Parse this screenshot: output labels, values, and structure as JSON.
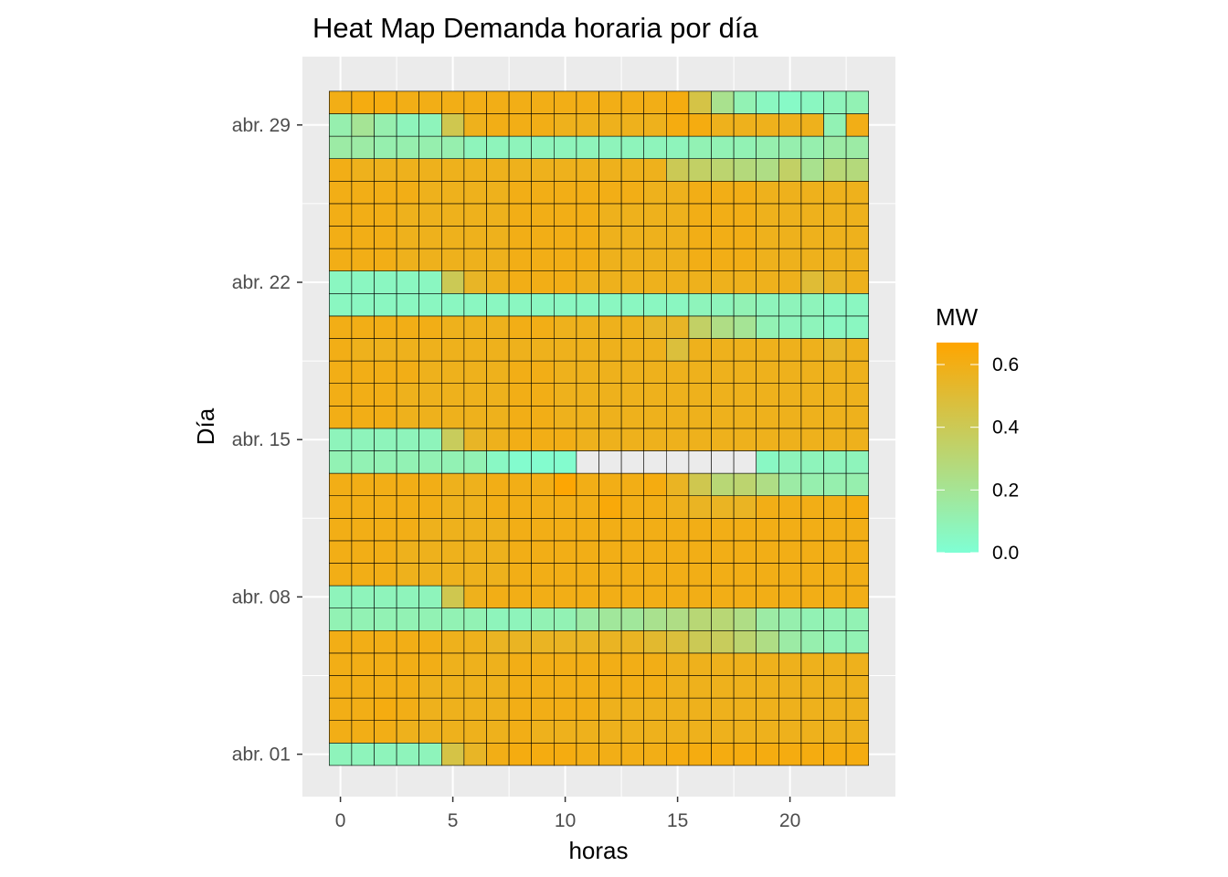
{
  "chart_data": {
    "type": "heatmap",
    "title": "Heat Map Demanda horaria por día",
    "xlabel": "horas",
    "ylabel": "Día",
    "x": [
      0,
      1,
      2,
      3,
      4,
      5,
      6,
      7,
      8,
      9,
      10,
      11,
      12,
      13,
      14,
      15,
      16,
      17,
      18,
      19,
      20,
      21,
      22,
      23
    ],
    "x_ticks": [
      0,
      5,
      10,
      15,
      20
    ],
    "x_tick_labels": [
      "0",
      "5",
      "10",
      "15",
      "20"
    ],
    "y_ticks": [
      {
        "day": 1,
        "label": "abr. 01"
      },
      {
        "day": 8,
        "label": "abr. 08"
      },
      {
        "day": 15,
        "label": "abr. 15"
      },
      {
        "day": 22,
        "label": "abr. 22"
      },
      {
        "day": 29,
        "label": "abr. 29"
      }
    ],
    "days": [
      {
        "day": 1,
        "values": [
          0.08,
          0.08,
          0.08,
          0.08,
          0.08,
          0.45,
          0.55,
          0.6,
          0.62,
          0.62,
          0.62,
          0.6,
          0.6,
          0.6,
          0.6,
          0.62,
          0.62,
          0.62,
          0.62,
          0.62,
          0.62,
          0.62,
          0.62,
          0.62
        ]
      },
      {
        "day": 2,
        "values": [
          0.6,
          0.6,
          0.6,
          0.58,
          0.58,
          0.58,
          0.58,
          0.58,
          0.6,
          0.58,
          0.58,
          0.58,
          0.58,
          0.58,
          0.58,
          0.58,
          0.58,
          0.58,
          0.58,
          0.58,
          0.58,
          0.58,
          0.58,
          0.58
        ]
      },
      {
        "day": 3,
        "values": [
          0.6,
          0.6,
          0.62,
          0.6,
          0.58,
          0.58,
          0.58,
          0.58,
          0.6,
          0.6,
          0.6,
          0.6,
          0.58,
          0.58,
          0.58,
          0.58,
          0.58,
          0.58,
          0.58,
          0.58,
          0.58,
          0.58,
          0.58,
          0.58
        ]
      },
      {
        "day": 4,
        "values": [
          0.6,
          0.6,
          0.6,
          0.6,
          0.58,
          0.58,
          0.58,
          0.58,
          0.6,
          0.6,
          0.6,
          0.6,
          0.6,
          0.6,
          0.6,
          0.58,
          0.58,
          0.58,
          0.58,
          0.58,
          0.58,
          0.58,
          0.58,
          0.58
        ]
      },
      {
        "day": 5,
        "values": [
          0.6,
          0.6,
          0.6,
          0.6,
          0.6,
          0.58,
          0.58,
          0.58,
          0.6,
          0.6,
          0.6,
          0.6,
          0.6,
          0.6,
          0.6,
          0.58,
          0.58,
          0.58,
          0.58,
          0.58,
          0.58,
          0.58,
          0.58,
          0.58
        ]
      },
      {
        "day": 6,
        "values": [
          0.6,
          0.6,
          0.6,
          0.6,
          0.6,
          0.58,
          0.58,
          0.56,
          0.56,
          0.56,
          0.56,
          0.56,
          0.56,
          0.56,
          0.52,
          0.48,
          0.4,
          0.38,
          0.32,
          0.25,
          0.15,
          0.12,
          0.1,
          0.1
        ]
      },
      {
        "day": 7,
        "values": [
          0.1,
          0.1,
          0.1,
          0.1,
          0.1,
          0.1,
          0.1,
          0.08,
          0.08,
          0.1,
          0.1,
          0.15,
          0.18,
          0.18,
          0.22,
          0.25,
          0.3,
          0.3,
          0.25,
          0.15,
          0.12,
          0.1,
          0.1,
          0.1
        ]
      },
      {
        "day": 8,
        "values": [
          0.08,
          0.08,
          0.08,
          0.08,
          0.08,
          0.42,
          0.58,
          0.6,
          0.6,
          0.6,
          0.6,
          0.6,
          0.6,
          0.6,
          0.6,
          0.6,
          0.6,
          0.6,
          0.6,
          0.6,
          0.6,
          0.6,
          0.6,
          0.6
        ]
      },
      {
        "day": 9,
        "values": [
          0.6,
          0.6,
          0.6,
          0.58,
          0.58,
          0.58,
          0.58,
          0.58,
          0.6,
          0.6,
          0.6,
          0.6,
          0.6,
          0.6,
          0.6,
          0.6,
          0.6,
          0.6,
          0.6,
          0.6,
          0.6,
          0.6,
          0.6,
          0.6
        ]
      },
      {
        "day": 10,
        "values": [
          0.6,
          0.6,
          0.6,
          0.58,
          0.58,
          0.58,
          0.58,
          0.58,
          0.6,
          0.6,
          0.6,
          0.6,
          0.6,
          0.6,
          0.6,
          0.6,
          0.6,
          0.6,
          0.6,
          0.6,
          0.6,
          0.6,
          0.6,
          0.6
        ]
      },
      {
        "day": 11,
        "values": [
          0.6,
          0.6,
          0.6,
          0.6,
          0.58,
          0.58,
          0.58,
          0.58,
          0.6,
          0.6,
          0.6,
          0.6,
          0.6,
          0.6,
          0.6,
          0.6,
          0.6,
          0.6,
          0.6,
          0.6,
          0.6,
          0.6,
          0.6,
          0.6
        ]
      },
      {
        "day": 12,
        "values": [
          0.6,
          0.6,
          0.6,
          0.6,
          0.6,
          0.58,
          0.58,
          0.6,
          0.6,
          0.6,
          0.6,
          0.6,
          0.64,
          0.6,
          0.6,
          0.58,
          0.56,
          0.56,
          0.56,
          0.6,
          0.6,
          0.6,
          0.6,
          0.62
        ]
      },
      {
        "day": 13,
        "values": [
          0.6,
          0.6,
          0.6,
          0.6,
          0.6,
          0.58,
          0.58,
          0.6,
          0.6,
          0.6,
          0.66,
          0.6,
          0.6,
          0.6,
          0.62,
          0.56,
          0.42,
          0.3,
          0.32,
          0.25,
          0.15,
          0.12,
          0.12,
          0.12
        ]
      },
      {
        "day": 14,
        "values": [
          0.1,
          0.1,
          0.1,
          0.1,
          0.1,
          0.1,
          0.1,
          0.05,
          0.02,
          0.02,
          0.02,
          null,
          null,
          null,
          null,
          null,
          null,
          null,
          null,
          0.05,
          0.08,
          0.08,
          0.08,
          0.08
        ]
      },
      {
        "day": 15,
        "values": [
          0.08,
          0.08,
          0.08,
          0.08,
          0.08,
          0.38,
          0.55,
          0.58,
          0.6,
          0.6,
          0.6,
          0.58,
          0.58,
          0.58,
          0.58,
          0.58,
          0.58,
          0.58,
          0.58,
          0.58,
          0.58,
          0.58,
          0.58,
          0.58
        ]
      },
      {
        "day": 16,
        "values": [
          0.6,
          0.6,
          0.6,
          0.58,
          0.58,
          0.58,
          0.58,
          0.58,
          0.6,
          0.6,
          0.58,
          0.58,
          0.58,
          0.58,
          0.58,
          0.58,
          0.58,
          0.58,
          0.58,
          0.58,
          0.58,
          0.58,
          0.58,
          0.58
        ]
      },
      {
        "day": 17,
        "values": [
          0.6,
          0.6,
          0.6,
          0.58,
          0.58,
          0.58,
          0.58,
          0.58,
          0.6,
          0.6,
          0.58,
          0.58,
          0.58,
          0.58,
          0.58,
          0.58,
          0.58,
          0.58,
          0.58,
          0.58,
          0.58,
          0.58,
          0.58,
          0.58
        ]
      },
      {
        "day": 18,
        "values": [
          0.6,
          0.6,
          0.6,
          0.6,
          0.58,
          0.58,
          0.58,
          0.58,
          0.6,
          0.6,
          0.58,
          0.58,
          0.58,
          0.58,
          0.58,
          0.58,
          0.58,
          0.58,
          0.58,
          0.58,
          0.58,
          0.58,
          0.58,
          0.58
        ]
      },
      {
        "day": 19,
        "values": [
          0.6,
          0.58,
          0.58,
          0.58,
          0.58,
          0.58,
          0.58,
          0.58,
          0.58,
          0.58,
          0.58,
          0.58,
          0.58,
          0.58,
          0.58,
          0.48,
          0.58,
          0.58,
          0.58,
          0.58,
          0.58,
          0.58,
          0.55,
          0.58
        ]
      },
      {
        "day": 20,
        "values": [
          0.6,
          0.6,
          0.6,
          0.6,
          0.6,
          0.58,
          0.58,
          0.58,
          0.6,
          0.6,
          0.58,
          0.58,
          0.58,
          0.58,
          0.55,
          0.55,
          0.35,
          0.25,
          0.2,
          0.1,
          0.08,
          0.08,
          0.06,
          0.06
        ]
      },
      {
        "day": 21,
        "values": [
          0.06,
          0.06,
          0.06,
          0.06,
          0.06,
          0.06,
          0.06,
          0.06,
          0.06,
          0.06,
          0.06,
          0.06,
          0.06,
          0.06,
          0.06,
          0.06,
          0.08,
          0.08,
          0.1,
          0.08,
          0.08,
          0.08,
          0.06,
          0.06
        ]
      },
      {
        "day": 22,
        "values": [
          0.06,
          0.06,
          0.06,
          0.06,
          0.06,
          0.4,
          0.55,
          0.58,
          0.6,
          0.6,
          0.6,
          0.58,
          0.58,
          0.58,
          0.58,
          0.58,
          0.58,
          0.58,
          0.58,
          0.58,
          0.58,
          0.5,
          0.55,
          0.58
        ]
      },
      {
        "day": 23,
        "values": [
          0.6,
          0.6,
          0.6,
          0.58,
          0.58,
          0.58,
          0.58,
          0.58,
          0.6,
          0.6,
          0.6,
          0.6,
          0.58,
          0.58,
          0.58,
          0.58,
          0.6,
          0.6,
          0.6,
          0.58,
          0.58,
          0.58,
          0.58,
          0.58
        ]
      },
      {
        "day": 24,
        "values": [
          0.6,
          0.6,
          0.6,
          0.58,
          0.58,
          0.58,
          0.58,
          0.58,
          0.6,
          0.6,
          0.6,
          0.6,
          0.58,
          0.58,
          0.58,
          0.58,
          0.6,
          0.6,
          0.6,
          0.58,
          0.58,
          0.58,
          0.58,
          0.58
        ]
      },
      {
        "day": 25,
        "values": [
          0.6,
          0.6,
          0.6,
          0.58,
          0.58,
          0.58,
          0.58,
          0.58,
          0.6,
          0.6,
          0.6,
          0.6,
          0.58,
          0.58,
          0.58,
          0.58,
          0.6,
          0.6,
          0.6,
          0.58,
          0.58,
          0.58,
          0.58,
          0.58
        ]
      },
      {
        "day": 26,
        "values": [
          0.6,
          0.6,
          0.6,
          0.6,
          0.58,
          0.58,
          0.58,
          0.58,
          0.6,
          0.6,
          0.6,
          0.6,
          0.6,
          0.6,
          0.58,
          0.58,
          0.6,
          0.6,
          0.6,
          0.58,
          0.58,
          0.58,
          0.58,
          0.58
        ]
      },
      {
        "day": 27,
        "values": [
          0.6,
          0.58,
          0.58,
          0.58,
          0.58,
          0.58,
          0.58,
          0.58,
          0.58,
          0.58,
          0.58,
          0.58,
          0.58,
          0.58,
          0.58,
          0.4,
          0.35,
          0.32,
          0.28,
          0.25,
          0.35,
          0.22,
          0.3,
          0.28
        ]
      },
      {
        "day": 28,
        "values": [
          0.15,
          0.15,
          0.12,
          0.12,
          0.12,
          0.12,
          0.08,
          0.08,
          0.08,
          0.08,
          0.08,
          0.08,
          0.08,
          0.08,
          0.08,
          0.08,
          0.1,
          0.1,
          0.1,
          0.12,
          0.12,
          0.12,
          0.15,
          0.15
        ]
      },
      {
        "day": 29,
        "values": [
          0.12,
          0.2,
          0.12,
          0.08,
          0.08,
          0.42,
          0.58,
          0.6,
          0.6,
          0.6,
          0.58,
          0.58,
          0.58,
          0.58,
          0.58,
          0.62,
          0.62,
          0.58,
          0.58,
          0.58,
          0.58,
          0.58,
          0.1,
          0.6
        ]
      },
      {
        "day": 30,
        "values": [
          0.6,
          0.62,
          0.62,
          0.6,
          0.6,
          0.6,
          0.6,
          0.6,
          0.6,
          0.6,
          0.6,
          0.6,
          0.6,
          0.6,
          0.6,
          0.62,
          0.45,
          0.22,
          0.1,
          0.06,
          0.04,
          0.06,
          0.08,
          0.1
        ]
      }
    ],
    "legend": {
      "title": "MW",
      "ticks": [
        0.0,
        0.2,
        0.4,
        0.6
      ],
      "tick_labels": [
        "0.0",
        "0.2",
        "0.4",
        "0.6"
      ],
      "range": [
        0,
        0.67
      ],
      "placement": "right"
    },
    "colors": {
      "low": "#7FFFD4",
      "high": "#FFA500",
      "na": "#EBEBEB",
      "panel_background": "#EBEBEB",
      "grid": "#FFFFFF",
      "tile_border": "#000000"
    },
    "xlim": [
      -0.5,
      23.5
    ],
    "ylim": [
      0.5,
      30.5
    ]
  }
}
